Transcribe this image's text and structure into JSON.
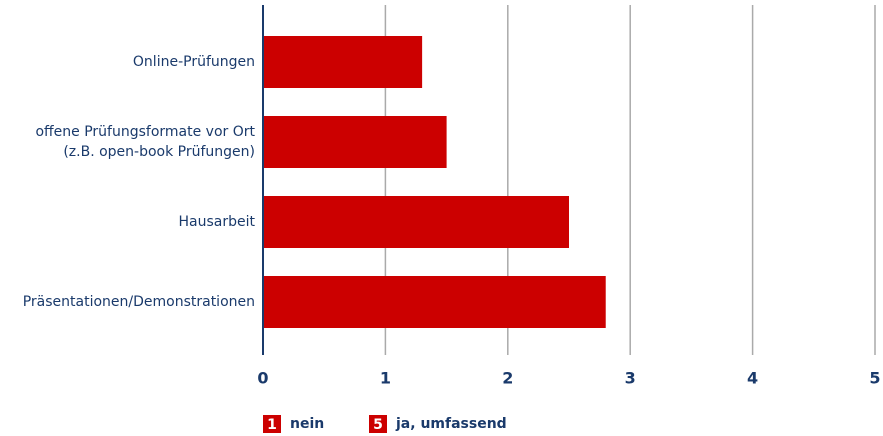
{
  "chart_data": {
    "type": "bar",
    "orientation": "horizontal",
    "categories": [
      "Online-Prüfungen",
      "offene Prüfungsformate vor Ort\n(z.B. open-book Prüfungen)",
      "Hausarbeit",
      "Präsentationen/Demonstrationen"
    ],
    "values": [
      1.3,
      1.5,
      2.5,
      2.8
    ],
    "color": "#cc0000",
    "xlim": [
      0,
      5
    ],
    "xticks": [
      0,
      1,
      2,
      3,
      4,
      5
    ],
    "grid": true,
    "legend": [
      {
        "key": "1",
        "label": "nein"
      },
      {
        "key": "5",
        "label": "ja, umfassend"
      }
    ]
  }
}
